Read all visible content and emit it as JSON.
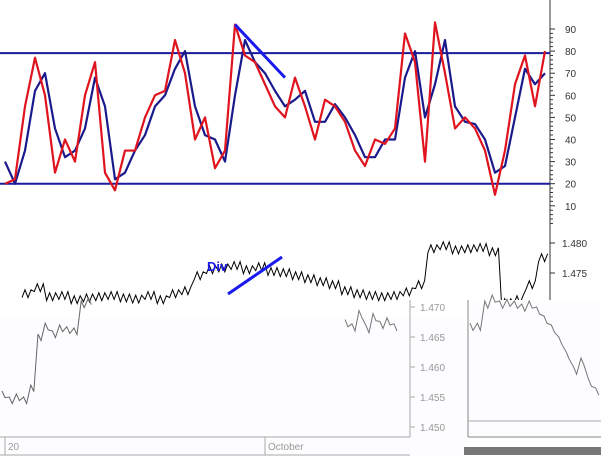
{
  "chart_data": [
    {
      "type": "line",
      "title": "",
      "ylim": [
        0,
        100
      ],
      "y_ticks": [
        "90",
        "80",
        "70",
        "60",
        "50",
        "40",
        "30",
        "20",
        "10"
      ],
      "y_tick_values": [
        90,
        80,
        70,
        60,
        50,
        40,
        30,
        20,
        10
      ],
      "reference_lines": [
        80,
        20
      ],
      "series": [
        {
          "color": "#e0141e",
          "values": [
            20,
            22,
            55,
            77,
            60,
            25,
            40,
            30,
            60,
            75,
            25,
            17,
            35,
            35,
            50,
            60,
            62,
            85,
            70,
            40,
            50,
            27,
            35,
            92,
            78,
            75,
            65,
            55,
            50,
            68,
            55,
            40,
            58,
            55,
            48,
            35,
            28,
            40,
            38,
            45,
            88,
            75,
            30,
            93,
            70,
            45,
            50,
            45,
            35,
            15,
            35,
            65,
            78,
            55,
            80
          ]
        },
        {
          "color": "#1a1a8c",
          "values": [
            30,
            20,
            35,
            62,
            70,
            45,
            32,
            35,
            45,
            68,
            55,
            22,
            25,
            35,
            42,
            55,
            60,
            72,
            80,
            55,
            42,
            40,
            30,
            60,
            85,
            75,
            70,
            62,
            55,
            58,
            62,
            48,
            48,
            56,
            50,
            42,
            32,
            32,
            40,
            40,
            68,
            80,
            50,
            65,
            85,
            55,
            48,
            47,
            40,
            25,
            28,
            50,
            72,
            65,
            70
          ]
        }
      ],
      "annotations": [
        {
          "type": "trendline",
          "color": "#1a1aee",
          "from": [
            92,
            235
          ],
          "to": [
            68,
            285
          ]
        }
      ]
    },
    {
      "type": "line",
      "y_ticks": [
        "1.480",
        "1.475",
        "1.470"
      ],
      "y_tick_values": [
        1.48,
        1.475,
        1.47
      ],
      "annotation_label": "Div",
      "series": [
        {
          "color": "#000000",
          "values": [
            1.4715,
            1.4725,
            1.471,
            1.4712,
            1.4705,
            1.4708,
            1.471,
            1.4712,
            1.4708,
            1.4706,
            1.4712,
            1.4705,
            1.4715,
            1.472,
            1.4745,
            1.4755,
            1.4758,
            1.4762,
            1.4755,
            1.476,
            1.4752,
            1.475,
            1.4745,
            1.474,
            1.4735,
            1.473,
            1.472,
            1.4715,
            1.4712,
            1.471,
            1.4712,
            1.4718,
            1.473,
            1.479,
            1.4795,
            1.4788,
            1.479,
            1.4792,
            1.4785,
            1.47,
            1.4705,
            1.473,
            1.4775
          ]
        }
      ]
    },
    {
      "type": "line",
      "x_ticks": [
        "20",
        "October"
      ],
      "y_ticks": [
        "1.470",
        "1.465",
        "1.460",
        "1.455",
        "1.450"
      ],
      "y_tick_values": [
        1.47,
        1.465,
        1.46,
        1.455,
        1.45
      ],
      "series": [
        {
          "color": "#666666",
          "values": [
            1.4555,
            1.4545,
            1.455,
            1.4545,
            1.4565,
            1.465,
            1.4668,
            1.4655,
            1.4665,
            1.4662,
            1.466,
            1.4705,
            1.471
          ]
        }
      ]
    },
    {
      "type": "line",
      "series": [
        {
          "color": "#777777",
          "values": [
            1.4668,
            1.4668,
            1.4705,
            1.4715,
            1.4705,
            1.4708,
            1.4705,
            1.47,
            1.4705,
            1.4695,
            1.468,
            1.4665,
            1.4645,
            1.462,
            1.4595,
            1.461,
            1.4575,
            1.456
          ]
        }
      ]
    }
  ]
}
